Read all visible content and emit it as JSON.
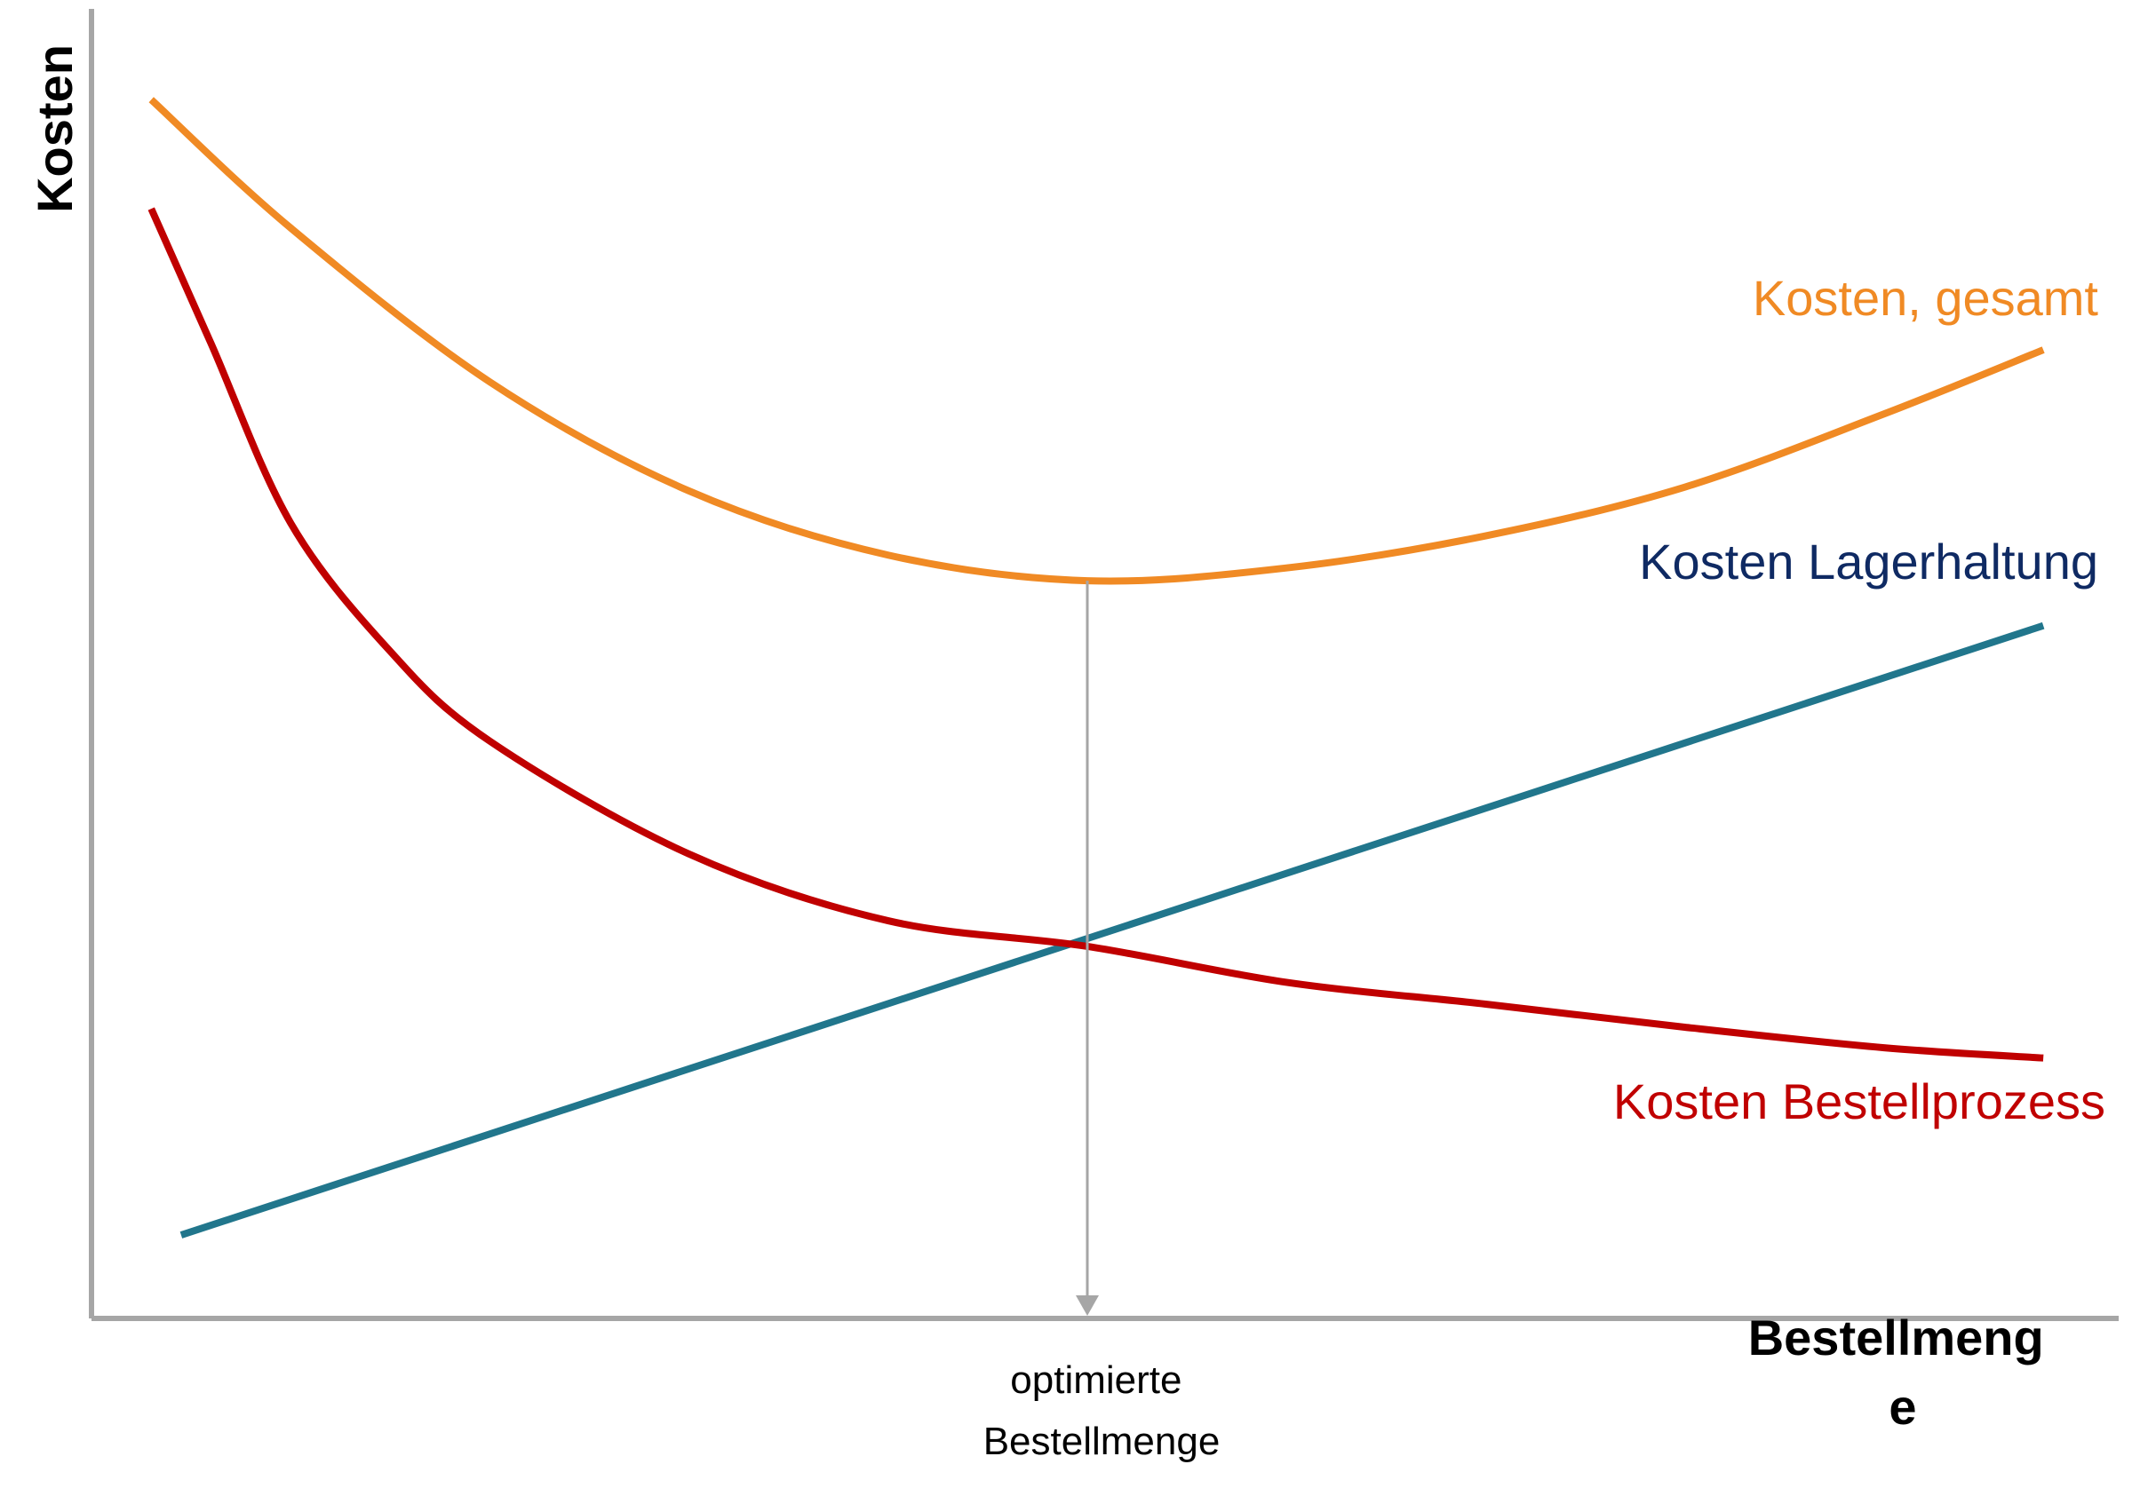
{
  "chart_data": {
    "type": "line",
    "title": "",
    "xlabel": [
      "Bestellmeng",
      "e"
    ],
    "ylabel": "Kosten",
    "xlim": [
      0,
      100
    ],
    "ylim": [
      0,
      100
    ],
    "grid": false,
    "annotation": {
      "x": 50,
      "lines": [
        "optimierte",
        "Bestellmenge"
      ],
      "color": "#a6a6a6"
    },
    "series": [
      {
        "name": "Kosten, gesamt",
        "color": "#f08a24",
        "points": [
          [
            3,
            95
          ],
          [
            10,
            85
          ],
          [
            20,
            73
          ],
          [
            30,
            64.5
          ],
          [
            40,
            59.5
          ],
          [
            50,
            57.5
          ],
          [
            60,
            58.5
          ],
          [
            70,
            61
          ],
          [
            80,
            64.8
          ],
          [
            90,
            70.5
          ],
          [
            98,
            75.5
          ]
        ]
      },
      {
        "name": "Kosten Lagerhaltung",
        "color": "#21768c",
        "points": [
          [
            4.5,
            6.5
          ],
          [
            98,
            54
          ]
        ]
      },
      {
        "name": "Kosten Bestellprozess",
        "color": "#c00000",
        "points": [
          [
            3,
            86.5
          ],
          [
            6,
            76
          ],
          [
            10,
            62
          ],
          [
            15,
            52
          ],
          [
            20,
            45
          ],
          [
            30,
            36.2
          ],
          [
            40,
            31
          ],
          [
            50,
            29
          ],
          [
            60,
            26.2
          ],
          [
            70,
            24.5
          ],
          [
            80,
            22.7
          ],
          [
            90,
            21.1
          ],
          [
            98,
            20.3
          ]
        ]
      }
    ]
  }
}
